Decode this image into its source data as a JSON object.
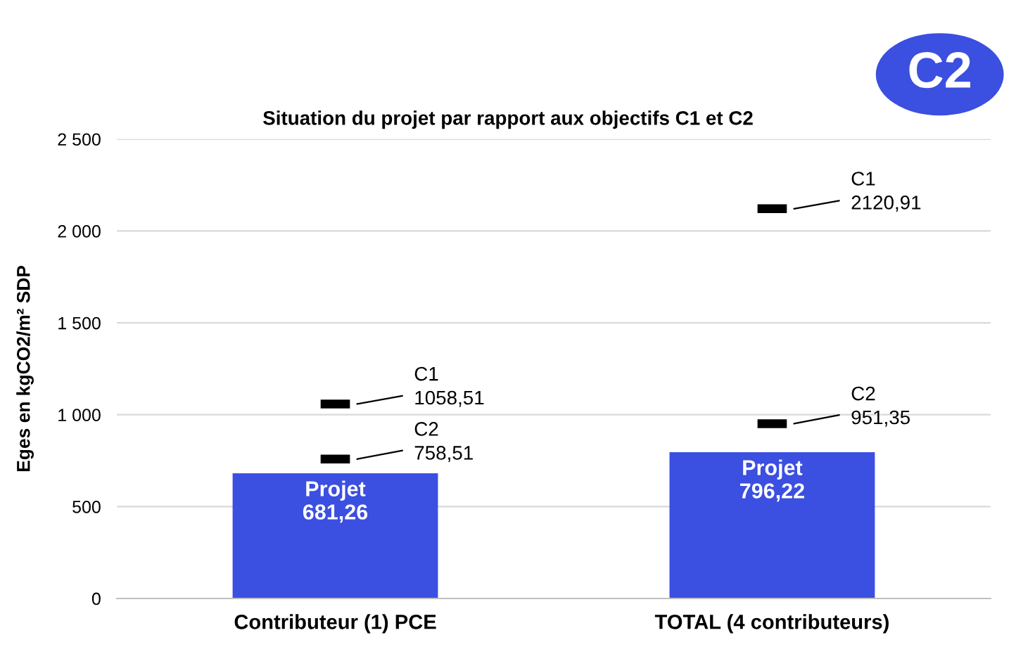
{
  "chart_data": {
    "type": "bar",
    "title": "Situation du projet par rapport aux objectifs C1 et C2",
    "ylabel": "Eges en kgCO2/m² SDP",
    "categories": [
      "Contributeur (1) PCE",
      "TOTAL (4 contributeurs)"
    ],
    "series": [
      {
        "name": "Projet",
        "type": "bar",
        "color": "#3b4fe0",
        "values": [
          681.26,
          796.22
        ],
        "value_labels": [
          "681,26",
          "796,22"
        ]
      },
      {
        "name": "C1",
        "type": "scatter",
        "color": "#000000",
        "values": [
          1058.51,
          2120.91
        ],
        "value_labels": [
          "1058,51",
          "2120,91"
        ]
      },
      {
        "name": "C2",
        "type": "scatter",
        "color": "#000000",
        "values": [
          758.51,
          951.35
        ],
        "value_labels": [
          "758,51",
          "951,35"
        ]
      }
    ],
    "ylim": [
      0,
      2500
    ],
    "yticks": [
      {
        "value": 0,
        "label": "0"
      },
      {
        "value": 500,
        "label": "500"
      },
      {
        "value": 1000,
        "label": "1 000"
      },
      {
        "value": 1500,
        "label": "1 500"
      },
      {
        "value": 2000,
        "label": "2 000"
      },
      {
        "value": 2500,
        "label": "2 500"
      }
    ],
    "grid": "y",
    "legend": false,
    "annotations": [
      "C2"
    ]
  }
}
